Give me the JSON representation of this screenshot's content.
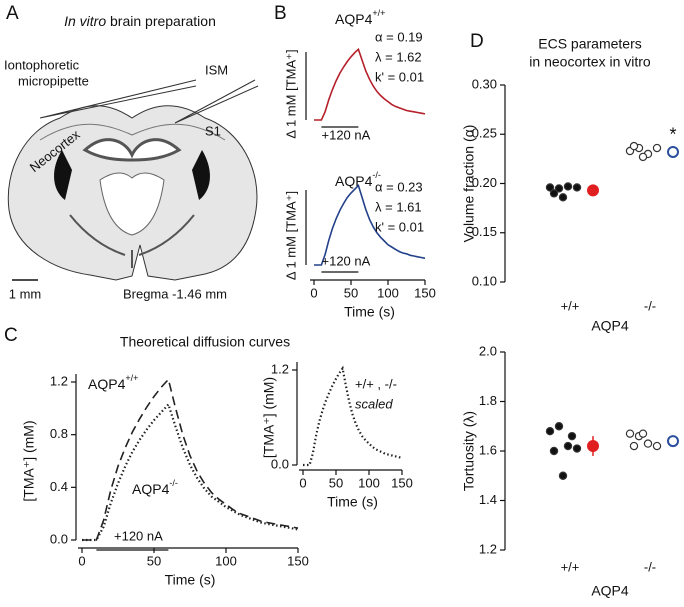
{
  "panel_labels": [
    "A",
    "B",
    "C",
    "D"
  ],
  "diagram": {
    "title_italic": "In vitro",
    "title_rest": "brain preparation",
    "pipette_label": [
      "Iontophoretic",
      "micropipette"
    ],
    "ism_label": "ISM",
    "region_label": "Neocortex",
    "area_label": "S1",
    "scale_label": "1 mm",
    "bregma_label": "Bregma -1.46 mm"
  },
  "chart_data": [
    {
      "type": "line",
      "title": "AQP4",
      "title_sup": "+/+",
      "annotations": [
        "α = 0.19",
        "λ = 1.62",
        "k' = 0.01"
      ],
      "scale_bar": {
        "value": 1,
        "label": "Δ 1 mM [TMA⁺]"
      },
      "stimulus": {
        "start": 10,
        "end": 60,
        "label": "+120 nA"
      },
      "xlim": [
        0,
        150
      ],
      "x": [
        0,
        5,
        10,
        15,
        20,
        25,
        30,
        35,
        40,
        45,
        50,
        55,
        60,
        65,
        70,
        75,
        80,
        85,
        90,
        95,
        100,
        105,
        110,
        115,
        120,
        125,
        130,
        135,
        140,
        145,
        150
      ],
      "series": [
        {
          "color": "#b5202a",
          "dash": "solid",
          "values": [
            0,
            0,
            0,
            0.12,
            0.3,
            0.45,
            0.58,
            0.69,
            0.78,
            0.86,
            0.93,
            0.99,
            1.04,
            0.88,
            0.72,
            0.6,
            0.5,
            0.42,
            0.36,
            0.31,
            0.27,
            0.23,
            0.2,
            0.18,
            0.16,
            0.14,
            0.13,
            0.12,
            0.11,
            0.1,
            0.09
          ]
        }
      ]
    },
    {
      "type": "line",
      "title": "AQP4",
      "title_sup": "-/-",
      "annotations": [
        "α = 0.23",
        "λ = 1.61",
        "k' = 0.01"
      ],
      "scale_bar": {
        "value": 1,
        "label": "Δ 1 mM [TMA⁺]"
      },
      "stimulus": {
        "start": 10,
        "end": 60,
        "label": "+120 nA"
      },
      "xlim": [
        0,
        150
      ],
      "xticks": [
        0,
        50,
        100,
        150
      ],
      "xlabel": "Time (s)",
      "x": [
        0,
        5,
        10,
        15,
        20,
        25,
        30,
        35,
        40,
        45,
        50,
        55,
        60,
        65,
        70,
        75,
        80,
        85,
        90,
        95,
        100,
        105,
        110,
        115,
        120,
        125,
        130,
        135,
        140,
        145,
        150
      ],
      "series": [
        {
          "color": "#23418a",
          "dash": "solid",
          "values": [
            0,
            0,
            0,
            0.14,
            0.33,
            0.49,
            0.62,
            0.73,
            0.82,
            0.9,
            0.96,
            1.01,
            1.06,
            0.9,
            0.74,
            0.61,
            0.51,
            0.43,
            0.37,
            0.32,
            0.27,
            0.24,
            0.21,
            0.18,
            0.16,
            0.15,
            0.13,
            0.12,
            0.11,
            0.1,
            0.09
          ]
        }
      ]
    },
    {
      "type": "line",
      "title": "Theoretical diffusion curves",
      "stimulus": {
        "start": 10,
        "end": 60,
        "label": "+120 nA"
      },
      "xlim": [
        0,
        150
      ],
      "xticks": [
        0,
        50,
        100,
        150
      ],
      "xlabel": "Time (s)",
      "ylim": [
        0,
        1.2
      ],
      "ylabel": "[TMA⁺] (mM)",
      "yticks": [
        {
          "value": 0,
          "label": "0.0"
        },
        {
          "value": 0.4,
          "label": "0.4"
        },
        {
          "value": 0.8,
          "label": "0.8"
        },
        {
          "value": 1.2,
          "label": "1.2"
        }
      ],
      "x": [
        0,
        5,
        10,
        15,
        20,
        25,
        30,
        35,
        40,
        45,
        50,
        55,
        60,
        65,
        70,
        75,
        80,
        85,
        90,
        95,
        100,
        105,
        110,
        115,
        120,
        125,
        130,
        135,
        140,
        145,
        150
      ],
      "series": [
        {
          "name": "AQP4",
          "name_sup": "+/+",
          "color": "#222222",
          "dash": "dashed",
          "values": [
            0,
            0,
            0,
            0.15,
            0.38,
            0.56,
            0.7,
            0.82,
            0.92,
            1.01,
            1.09,
            1.16,
            1.22,
            1.0,
            0.8,
            0.64,
            0.52,
            0.43,
            0.36,
            0.31,
            0.27,
            0.23,
            0.2,
            0.18,
            0.16,
            0.14,
            0.13,
            0.12,
            0.11,
            0.1,
            0.09
          ]
        },
        {
          "name": "AQP4",
          "name_sup": "-/-",
          "color": "#222222",
          "dash": "dotted",
          "values": [
            0,
            0,
            0,
            0.1,
            0.28,
            0.43,
            0.56,
            0.67,
            0.76,
            0.84,
            0.91,
            0.97,
            1.03,
            0.86,
            0.7,
            0.57,
            0.47,
            0.39,
            0.33,
            0.29,
            0.25,
            0.22,
            0.19,
            0.17,
            0.15,
            0.13,
            0.12,
            0.11,
            0.1,
            0.09,
            0.08
          ]
        }
      ]
    },
    {
      "type": "line",
      "annotations": [
        "+/+ , -/-",
        "scaled"
      ],
      "xlim": [
        0,
        150
      ],
      "xticks": [
        0,
        50,
        100,
        150
      ],
      "xlabel": "Time (s)",
      "ylim": [
        0,
        1.2
      ],
      "ylabel": "[TMA⁺] (mM)",
      "yticks": [
        {
          "value": 0,
          "label": "0.0"
        },
        {
          "value": 1.2,
          "label": "1.2"
        }
      ],
      "x": [
        0,
        5,
        10,
        15,
        20,
        25,
        30,
        35,
        40,
        45,
        50,
        55,
        60,
        65,
        70,
        75,
        80,
        85,
        90,
        95,
        100,
        105,
        110,
        115,
        120,
        125,
        130,
        135,
        140,
        145,
        150
      ],
      "series": [
        {
          "color": "#222222",
          "dash": "dotted",
          "values": [
            0,
            0,
            0,
            0.15,
            0.38,
            0.56,
            0.7,
            0.82,
            0.92,
            1.01,
            1.09,
            1.16,
            1.22,
            1.0,
            0.8,
            0.64,
            0.52,
            0.43,
            0.36,
            0.31,
            0.27,
            0.23,
            0.2,
            0.18,
            0.16,
            0.14,
            0.13,
            0.12,
            0.11,
            0.1,
            0.09
          ]
        }
      ]
    },
    {
      "type": "strip",
      "title": [
        "ECS parameters",
        "in neocortex in vitro"
      ],
      "ylabel": "Volume fraction (α)",
      "xlabel": "AQP4",
      "categories": [
        "+/+",
        "-/-"
      ],
      "ylim": [
        0.1,
        0.3
      ],
      "yticks": [
        {
          "value": 0.1,
          "label": "0.10"
        },
        {
          "value": 0.15,
          "label": "0.15"
        },
        {
          "value": 0.2,
          "label": "0.20"
        },
        {
          "value": 0.25,
          "label": "0.25"
        },
        {
          "value": 0.3,
          "label": "0.30"
        }
      ],
      "groups": [
        {
          "values": [
            0.196,
            0.195,
            0.197,
            0.196,
            0.19,
            0.186
          ],
          "mean": 0.193,
          "error": 0.003,
          "filled": true,
          "mean_color": "#e02020"
        },
        {
          "values": [
            0.233,
            0.236,
            0.23,
            0.236,
            0.238,
            0.227
          ],
          "mean": 0.232,
          "error": 0.003,
          "filled": false,
          "mean_color": "#2b4f9e",
          "annotation": "*"
        }
      ]
    },
    {
      "type": "strip",
      "ylabel": "Tortuosity (λ)",
      "xlabel": "AQP4",
      "categories": [
        "+/+",
        "-/-"
      ],
      "ylim": [
        1.2,
        2.0
      ],
      "yticks": [
        {
          "value": 1.2,
          "label": "1.2"
        },
        {
          "value": 1.4,
          "label": "1.4"
        },
        {
          "value": 1.6,
          "label": "1.6"
        },
        {
          "value": 1.8,
          "label": "1.8"
        },
        {
          "value": 2.0,
          "label": "2.0"
        }
      ],
      "groups": [
        {
          "values": [
            1.68,
            1.7,
            1.62,
            1.61,
            1.6,
            1.5,
            1.66
          ],
          "mean": 1.62,
          "error": 0.04,
          "filled": true,
          "mean_color": "#e02020"
        },
        {
          "values": [
            1.67,
            1.66,
            1.63,
            1.62,
            1.62,
            1.67
          ],
          "mean": 1.64,
          "error": 0.01,
          "filled": false,
          "mean_color": "#2b4f9e"
        }
      ]
    }
  ]
}
